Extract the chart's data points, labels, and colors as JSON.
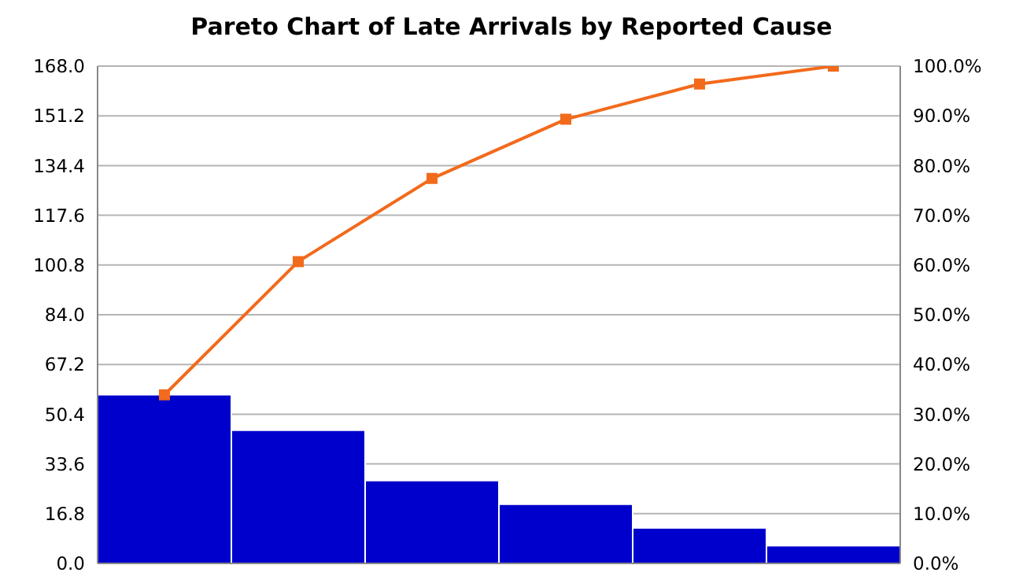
{
  "chart_data": {
    "type": "bar",
    "title": "Pareto Chart of Late Arrivals by Reported Cause",
    "categories": [
      null,
      null,
      null,
      null,
      null,
      null
    ],
    "series": [
      {
        "color": "#0000cc",
        "values": [
          57,
          45,
          28,
          20,
          12,
          6
        ]
      },
      {
        "type": "line",
        "axis": "y2",
        "color": "#f26a1b",
        "values": [
          33.9,
          60.7,
          77.4,
          89.3,
          96.4,
          100
        ]
      }
    ],
    "ylim": [
      0,
      168
    ],
    "yticks": [
      {
        "value": 0,
        "label": "0.0"
      },
      {
        "value": 16.8,
        "label": "16.8"
      },
      {
        "value": 33.6,
        "label": "33.6"
      },
      {
        "value": 50.4,
        "label": "50.4"
      },
      {
        "value": 67.2,
        "label": "67.2"
      },
      {
        "value": 84,
        "label": "84.0"
      },
      {
        "value": 100.8,
        "label": "100.8"
      },
      {
        "value": 117.6,
        "label": "117.6"
      },
      {
        "value": 134.4,
        "label": "134.4"
      },
      {
        "value": 151.2,
        "label": "151.2"
      },
      {
        "value": 168,
        "label": "168.0"
      }
    ],
    "y2lim": [
      0,
      100
    ],
    "y2ticks": [
      {
        "value": 0,
        "label": "0.0%"
      },
      {
        "value": 10,
        "label": "10.0%"
      },
      {
        "value": 20,
        "label": "20.0%"
      },
      {
        "value": 30,
        "label": "30.0%"
      },
      {
        "value": 40,
        "label": "40.0%"
      },
      {
        "value": 50,
        "label": "50.0%"
      },
      {
        "value": 60,
        "label": "60.0%"
      },
      {
        "value": 70,
        "label": "70.0%"
      },
      {
        "value": 80,
        "label": "80.0%"
      },
      {
        "value": 90,
        "label": "90.0%"
      },
      {
        "value": 100,
        "label": "100.0%"
      }
    ],
    "tick_labels": "y",
    "grid": "y",
    "marker": "square",
    "line_style": "solid",
    "legend": false
  }
}
